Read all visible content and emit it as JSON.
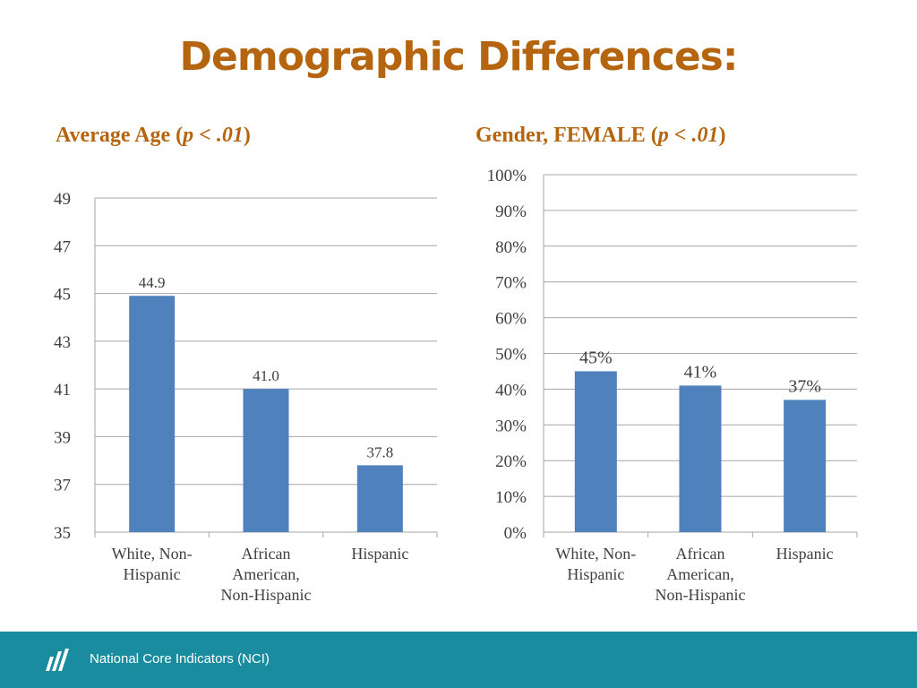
{
  "title": "Demographic Differences:",
  "footer": {
    "text": "National Core Indicators (NCI)",
    "logo_icon": "nci-logo-icon"
  },
  "colors": {
    "bar": "#4f81bd",
    "heading": "#b5650f",
    "footer": "#1a8c9f",
    "grid": "#a6a6a6"
  },
  "chart_data": [
    {
      "type": "bar",
      "title": "Average Age (p < .01)",
      "title_prefix": "Average Age (",
      "title_italic": "p < .01",
      "title_suffix": ")",
      "categories": [
        [
          "White, Non-",
          "Hispanic"
        ],
        [
          "African",
          "American,",
          "Non-Hispanic"
        ],
        [
          "Hispanic"
        ]
      ],
      "values": [
        44.9,
        41.0,
        37.8
      ],
      "data_labels": [
        "44.9",
        "41.0",
        "37.8"
      ],
      "ylim": [
        35,
        49
      ],
      "yticks": [
        35,
        37,
        39,
        41,
        43,
        45,
        47,
        49
      ],
      "ytick_labels": [
        "35",
        "37",
        "39",
        "41",
        "43",
        "45",
        "47",
        "49"
      ],
      "grid": true,
      "legend": "none"
    },
    {
      "type": "bar",
      "title": "Gender, FEMALE (p < .01)",
      "title_prefix": "Gender, FEMALE (",
      "title_italic": "p < .01",
      "title_suffix": ")",
      "categories": [
        [
          "White, Non-",
          "Hispanic"
        ],
        [
          "African",
          "American,",
          "Non-Hispanic"
        ],
        [
          "Hispanic"
        ]
      ],
      "values": [
        45,
        41,
        37
      ],
      "data_labels": [
        "45%",
        "41%",
        "37%"
      ],
      "ylim": [
        0,
        100
      ],
      "yticks": [
        0,
        10,
        20,
        30,
        40,
        50,
        60,
        70,
        80,
        90,
        100
      ],
      "ytick_labels": [
        "0%",
        "10%",
        "20%",
        "30%",
        "40%",
        "50%",
        "60%",
        "70%",
        "80%",
        "90%",
        "100%"
      ],
      "grid": true,
      "legend": "none"
    }
  ]
}
